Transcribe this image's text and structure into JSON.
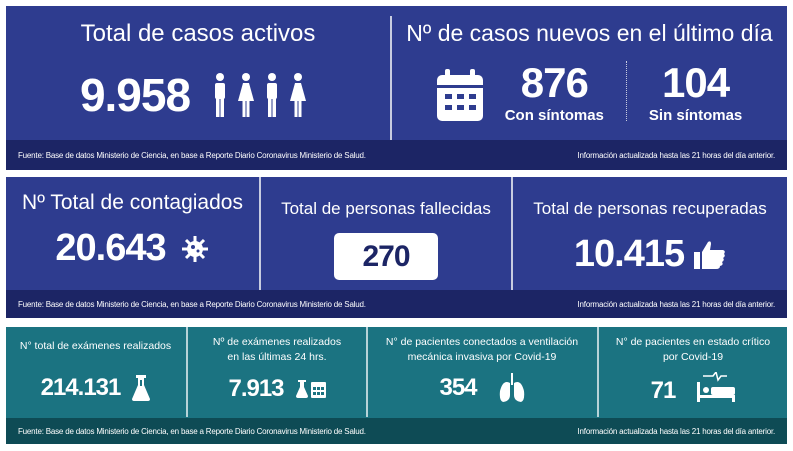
{
  "panel1": {
    "activos": {
      "title": "Total de casos activos",
      "value": "9.958",
      "icon": "people-icon"
    },
    "nuevos": {
      "title": "Nº de casos nuevos en el último día",
      "icon": "calendar-icon",
      "con_value": "876",
      "con_label": "Con síntomas",
      "sin_value": "104",
      "sin_label": "Sin síntomas"
    },
    "footer_source": "Fuente: Base de datos Ministerio de Ciencia, en base a Reporte Diario Coronavirus Ministerio de Salud.",
    "footer_update": "Información actualizada hasta las 21 horas  del día anterior."
  },
  "panel2": {
    "contagiados": {
      "title": "Nº Total de contagiados",
      "value": "20.643",
      "icon": "virus-icon"
    },
    "fallecidos": {
      "title": "Total de personas fallecidas",
      "value": "270"
    },
    "recuperados": {
      "title": "Total de personas recuperadas",
      "value": "10.415",
      "icon": "thumbs-up-icon"
    },
    "footer_source": "Fuente: Base de datos Ministerio de Ciencia, en base a Reporte Diario Coronavirus Ministerio de Salud.",
    "footer_update": "Información actualizada hasta las 21 horas  del día anterior."
  },
  "panel3": {
    "examenes_total": {
      "title": "N° total de exámenes realizados",
      "value": "214.131",
      "icon": "flask-icon"
    },
    "examenes_24h": {
      "title_1": "Nº de exámenes realizados",
      "title_2": "en las últimas 24 hrs.",
      "value": "7.913",
      "icon": "flask-calendar-icon"
    },
    "ventilacion": {
      "title_1": "N° de pacientes conectados a ventilación",
      "title_2": "mecánica invasiva por Covid-19",
      "value": "354",
      "icon": "lungs-icon"
    },
    "critico": {
      "title_1": "N° de pacientes en estado crítico",
      "title_2": "por Covid-19",
      "value": "71",
      "icon": "hospital-bed-icon"
    },
    "footer_source": "Fuente: Base de datos Ministerio de Ciencia, en base a Reporte Diario Coronavirus Ministerio de Salud.",
    "footer_update": "Información actualizada hasta las 21 horas  del día anterior."
  }
}
